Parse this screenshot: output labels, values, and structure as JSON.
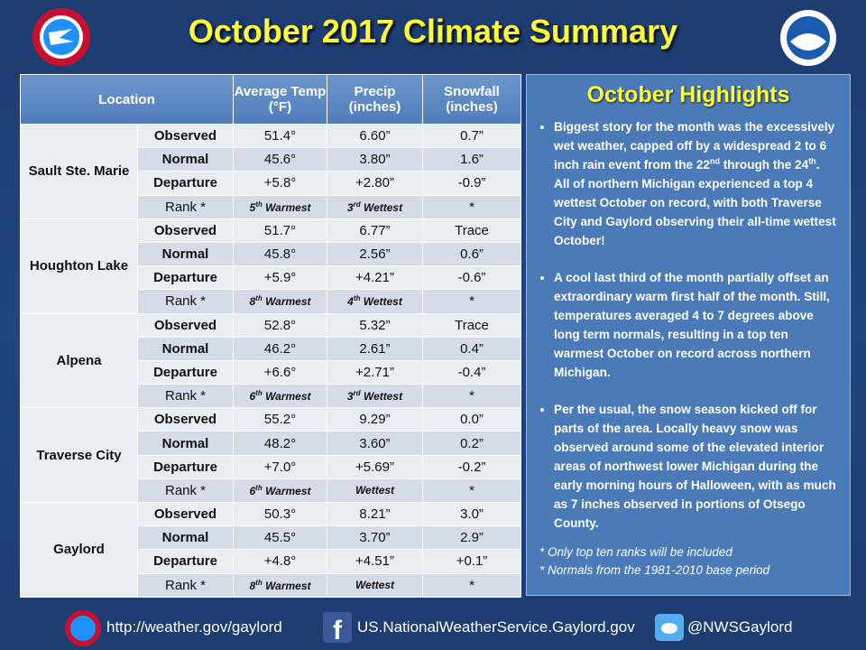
{
  "header": {
    "title": "October 2017 Climate Summary"
  },
  "table": {
    "columns": [
      "Location",
      "Average Temp (°F)",
      "Precip (inches)",
      "Snowfall (inches)"
    ],
    "locations": [
      {
        "name": "Sault Ste. Marie",
        "rows": [
          {
            "label": "Observed",
            "temp": "51.4°",
            "precip": "6.60”",
            "snow": "0.7”"
          },
          {
            "label": "Normal",
            "temp": "45.6°",
            "precip": "3.80”",
            "snow": "1.6”"
          },
          {
            "label": "Departure",
            "temp": "+5.8°",
            "precip": "+2.80”",
            "snow": "-0.9”"
          },
          {
            "label": "Rank *",
            "temp": {
              "ordinal": "5",
              "suffix": "th",
              "word": "Warmest"
            },
            "precip": {
              "ordinal": "3",
              "suffix": "rd",
              "word": "Wettest"
            },
            "snow": "*"
          }
        ]
      },
      {
        "name": "Houghton Lake",
        "rows": [
          {
            "label": "Observed",
            "temp": "51.7°",
            "precip": "6.77”",
            "snow": "Trace"
          },
          {
            "label": "Normal",
            "temp": "45.8°",
            "precip": "2.56”",
            "snow": "0.6”"
          },
          {
            "label": "Departure",
            "temp": "+5.9°",
            "precip": "+4.21”",
            "snow": "-0.6”"
          },
          {
            "label": "Rank *",
            "temp": {
              "ordinal": "8",
              "suffix": "th",
              "word": "Warmest"
            },
            "precip": {
              "ordinal": "4",
              "suffix": "th",
              "word": "Wettest"
            },
            "snow": "*"
          }
        ]
      },
      {
        "name": "Alpena",
        "rows": [
          {
            "label": "Observed",
            "temp": "52.8°",
            "precip": "5.32”",
            "snow": "Trace"
          },
          {
            "label": "Normal",
            "temp": "46.2°",
            "precip": "2.61”",
            "snow": "0.4”"
          },
          {
            "label": "Departure",
            "temp": "+6.6°",
            "precip": "+2.71”",
            "snow": "-0.4”"
          },
          {
            "label": "Rank *",
            "temp": {
              "ordinal": "6",
              "suffix": "th",
              "word": "Warmest"
            },
            "precip": {
              "ordinal": "3",
              "suffix": "rd",
              "word": "Wettest"
            },
            "snow": "*"
          }
        ]
      },
      {
        "name": "Traverse City",
        "rows": [
          {
            "label": "Observed",
            "temp": "55.2°",
            "precip": "9.29”",
            "snow": "0.0”"
          },
          {
            "label": "Normal",
            "temp": "48.2°",
            "precip": "3.60”",
            "snow": "0.2”"
          },
          {
            "label": "Departure",
            "temp": "+7.0°",
            "precip": "+5.69”",
            "snow": "-0.2”"
          },
          {
            "label": "Rank *",
            "temp": {
              "ordinal": "6",
              "suffix": "th",
              "word": "Warmest"
            },
            "precip": {
              "word": "Wettest"
            },
            "snow": "*"
          }
        ]
      },
      {
        "name": "Gaylord",
        "rows": [
          {
            "label": "Observed",
            "temp": "50.3°",
            "precip": "8.21”",
            "snow": "3.0”"
          },
          {
            "label": "Normal",
            "temp": "45.5°",
            "precip": "3.70”",
            "snow": "2.9”"
          },
          {
            "label": "Departure",
            "temp": "+4.8°",
            "precip": "+4.51”",
            "snow": "+0.1”"
          },
          {
            "label": "Rank *",
            "temp": {
              "ordinal": "8",
              "suffix": "th",
              "word": "Warmest"
            },
            "precip": {
              "word": "Wettest"
            },
            "snow": "*"
          }
        ]
      }
    ]
  },
  "highlights": {
    "title": "October Highlights",
    "bullets": [
      [
        {
          "text": "Biggest story for the month was the excessively wet weather, capped off by a widespread 2 to 6 inch rain event from the 22"
        },
        {
          "sup": "nd"
        },
        {
          "text": " through the 24"
        },
        {
          "sup": "th"
        },
        {
          "text": ".  All of northern Michigan experienced a top 4 wettest October on record, with both Traverse City and Gaylord observing their all-time wettest October!"
        }
      ],
      [
        {
          "text": "A cool last third of the month partially offset an extraordinary warm first half of the month.  Still, temperatures averaged 4 to 7 degrees above long term normals, resulting in a top ten warmest October on record across northern Michigan."
        }
      ],
      [
        {
          "text": "Per the usual, the snow season kicked off for parts of the area.  Locally heavy snow was observed around some of the elevated interior areas of northwest lower Michigan during the early morning hours of Halloween, with as much as 7 inches observed in portions of Otsego County."
        }
      ]
    ],
    "notes": [
      "*  Only top ten ranks will be included",
      "*  Normals from the 1981-2010 base period"
    ]
  },
  "footer": {
    "website": "http://weather.gov/gaylord",
    "facebook": "US.NationalWeatherService.Gaylord.gov",
    "twitter": "@NWSGaylord"
  }
}
